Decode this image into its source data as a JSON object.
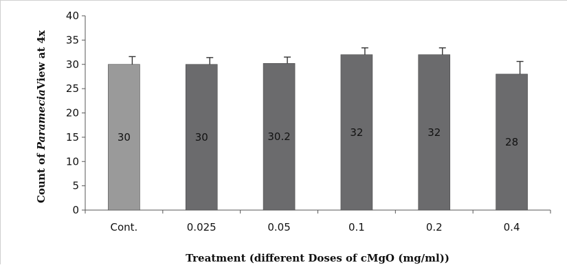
{
  "chart_data": {
    "type": "bar",
    "categories": [
      "Cont.",
      "0.025",
      "0.05",
      "0.1",
      "0.2",
      "0.4"
    ],
    "values": [
      30,
      30,
      30.2,
      32,
      32,
      28
    ],
    "data_labels": [
      "30",
      "30",
      "30.2",
      "32",
      "32",
      "28"
    ],
    "error": [
      1.6,
      1.4,
      1.3,
      1.4,
      1.4,
      2.6
    ],
    "bar_colors": [
      "#9a9a9a",
      "#6b6b6d",
      "#6b6b6d",
      "#6b6b6d",
      "#6b6b6d",
      "#6b6b6d"
    ],
    "ylim": [
      0,
      40
    ],
    "yticks": [
      0,
      5,
      10,
      15,
      20,
      25,
      30,
      35,
      40
    ],
    "ylabel_parts": [
      "Count of ",
      "Paramecia",
      "View at 4x"
    ],
    "xlabel": "Treatment (different  Doses of cMgO (mg/ml))",
    "grid": false,
    "legend": "none"
  }
}
